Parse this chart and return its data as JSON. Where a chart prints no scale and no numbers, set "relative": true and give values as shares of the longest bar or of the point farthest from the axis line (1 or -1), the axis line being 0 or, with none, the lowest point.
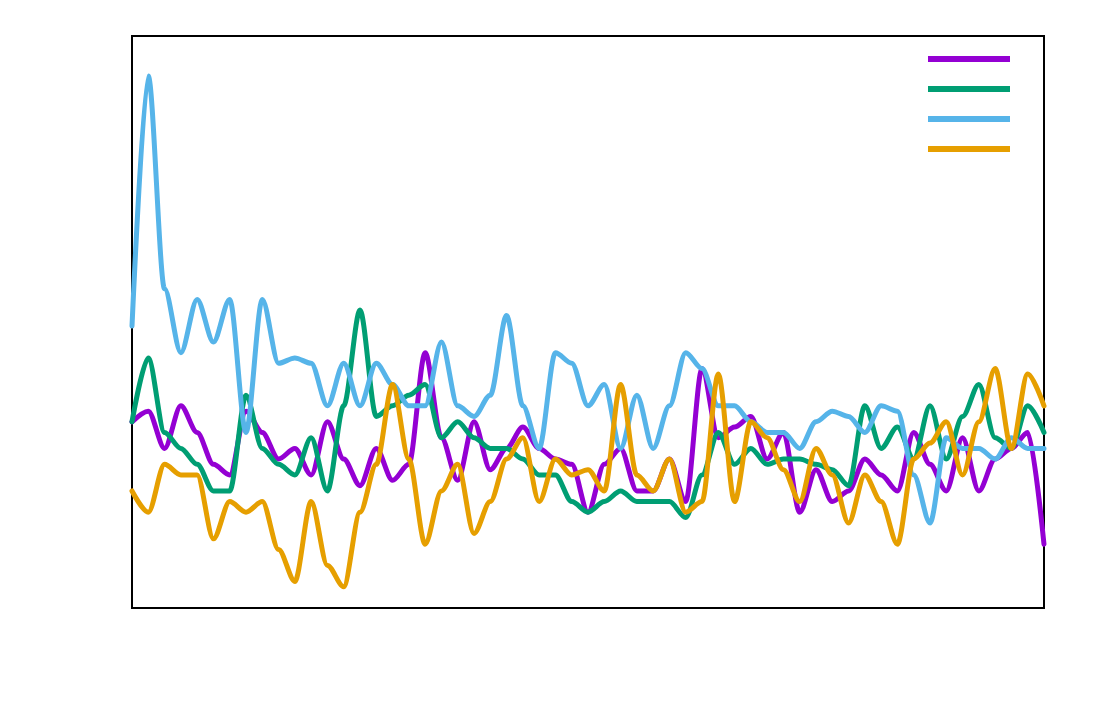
{
  "chart_data": {
    "type": "line",
    "relative": true,
    "grid": false,
    "marker": "none",
    "line_style": "solid",
    "categories": [
      null,
      null,
      null,
      null,
      null,
      null,
      null,
      null,
      null,
      null,
      null,
      null,
      null,
      null,
      null,
      null,
      null,
      null,
      null,
      null,
      null,
      null,
      null,
      null,
      null,
      null,
      null,
      null,
      null,
      null,
      null,
      null,
      null,
      null,
      null,
      null,
      null,
      null,
      null,
      null,
      null,
      null,
      null,
      null,
      null,
      null,
      null,
      null,
      null,
      null,
      null,
      null,
      null,
      null,
      null,
      null,
      null
    ],
    "series": [
      {
        "color": "#9400d3",
        "values": [
          0.35,
          0.37,
          0.3,
          0.38,
          0.33,
          0.27,
          0.25,
          0.37,
          0.33,
          0.28,
          0.3,
          0.25,
          0.35,
          0.28,
          0.23,
          0.3,
          0.24,
          0.27,
          0.48,
          0.32,
          0.24,
          0.35,
          0.26,
          0.3,
          0.34,
          0.3,
          0.28,
          0.27,
          0.18,
          0.27,
          0.3,
          0.22,
          0.22,
          0.28,
          0.2,
          0.45,
          0.32,
          0.34,
          0.36,
          0.28,
          0.33,
          0.18,
          0.26,
          0.2,
          0.22,
          0.28,
          0.25,
          0.22,
          0.33,
          0.27,
          0.22,
          0.32,
          0.22,
          0.28,
          0.3,
          0.33,
          0.12
        ]
      },
      {
        "color": "#009e73",
        "values": [
          0.35,
          0.47,
          0.33,
          0.3,
          0.27,
          0.22,
          0.22,
          0.4,
          0.3,
          0.27,
          0.25,
          0.32,
          0.22,
          0.38,
          0.56,
          0.36,
          0.38,
          0.4,
          0.42,
          0.32,
          0.35,
          0.32,
          0.3,
          0.3,
          0.28,
          0.25,
          0.25,
          0.2,
          0.18,
          0.2,
          0.22,
          0.2,
          0.2,
          0.2,
          0.17,
          0.25,
          0.33,
          0.27,
          0.3,
          0.27,
          0.28,
          0.28,
          0.27,
          0.26,
          0.23,
          0.38,
          0.3,
          0.34,
          0.28,
          0.38,
          0.28,
          0.36,
          0.42,
          0.32,
          0.3,
          0.38,
          0.33
        ]
      },
      {
        "color": "#56b4e9",
        "values": [
          0.53,
          1.0,
          0.6,
          0.48,
          0.58,
          0.5,
          0.58,
          0.33,
          0.58,
          0.46,
          0.47,
          0.46,
          0.38,
          0.46,
          0.38,
          0.46,
          0.42,
          0.38,
          0.38,
          0.5,
          0.38,
          0.36,
          0.4,
          0.55,
          0.38,
          0.3,
          0.48,
          0.46,
          0.38,
          0.42,
          0.3,
          0.4,
          0.3,
          0.38,
          0.48,
          0.45,
          0.38,
          0.38,
          0.35,
          0.33,
          0.33,
          0.3,
          0.35,
          0.37,
          0.36,
          0.33,
          0.38,
          0.37,
          0.25,
          0.16,
          0.32,
          0.3,
          0.3,
          0.28,
          0.32,
          0.3,
          0.3
        ]
      },
      {
        "color": "#e69f00",
        "values": [
          0.22,
          0.18,
          0.27,
          0.25,
          0.25,
          0.13,
          0.2,
          0.18,
          0.2,
          0.11,
          0.05,
          0.2,
          0.08,
          0.04,
          0.18,
          0.27,
          0.42,
          0.28,
          0.12,
          0.22,
          0.27,
          0.14,
          0.2,
          0.28,
          0.32,
          0.2,
          0.28,
          0.25,
          0.26,
          0.22,
          0.42,
          0.25,
          0.22,
          0.28,
          0.18,
          0.2,
          0.44,
          0.2,
          0.35,
          0.32,
          0.26,
          0.2,
          0.3,
          0.25,
          0.16,
          0.25,
          0.2,
          0.12,
          0.28,
          0.31,
          0.35,
          0.25,
          0.35,
          0.45,
          0.3,
          0.44,
          0.38
        ]
      }
    ]
  }
}
